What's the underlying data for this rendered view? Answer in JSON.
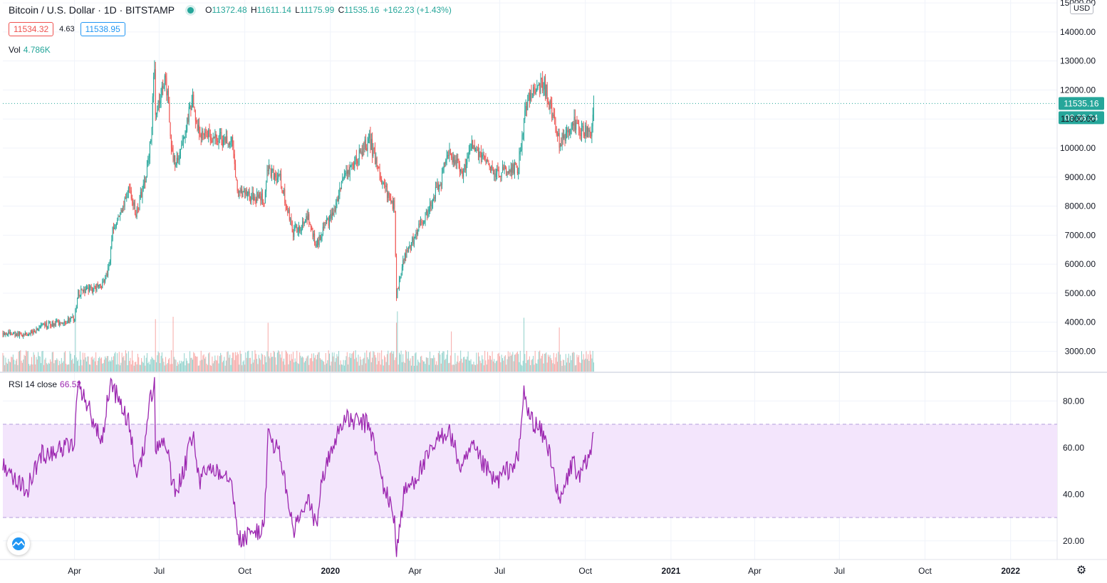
{
  "header": {
    "symbol_title": "Bitcoin / U.S. Dollar · 1D · BITSTAMP",
    "ohlc": [
      {
        "key": "O",
        "value": "11372.48"
      },
      {
        "key": "H",
        "value": "11611.14"
      },
      {
        "key": "L",
        "value": "11175.99"
      },
      {
        "key": "C",
        "value": "11535.16"
      }
    ],
    "change": "+162.23 (+1.43%)",
    "bid": "11534.32",
    "spread": "4.63",
    "ask": "11538.95",
    "volume_label": "Vol",
    "volume_value": "4.786K"
  },
  "rsi": {
    "label": "RSI 14 close",
    "value": "66.52"
  },
  "price_axis": {
    "currency": "USD",
    "last_price_label": "11535.16",
    "countdown_label": "06:36:34"
  },
  "colors": {
    "up": "#26a69a",
    "down": "#ef5350",
    "rsi_line": "#9c27b0",
    "rsi_band": "#f3e5fc",
    "grid": "#f0f3fa",
    "bid": "#ef5350",
    "ask": "#2196f3"
  },
  "icons": {
    "logo": "tradingview-logo-icon",
    "settings": "gear-icon"
  },
  "chart_data": [
    {
      "type": "candlestick",
      "title": "Bitcoin / U.S. Dollar · 1D · BITSTAMP",
      "y_ticks": [
        3000,
        4000,
        5000,
        6000,
        7000,
        8000,
        9000,
        10000,
        11000,
        12000,
        13000,
        14000,
        15000
      ],
      "y_tick_labels": [
        "3000.00",
        "4000.00",
        "5000.00",
        "6000.00",
        "7000.00",
        "8000.00",
        "9000.00",
        "10000.00",
        "11000.00",
        "12000.00",
        "13000.00",
        "14000.00",
        "15000.00"
      ],
      "x_tick_labels": [
        "Apr",
        "Jul",
        "Oct",
        "2020",
        "Apr",
        "Jul",
        "Oct",
        "2021",
        "Apr",
        "Jul",
        "Oct",
        "2022"
      ],
      "x_tick_dates": [
        "2019-04-01",
        "2019-07-01",
        "2019-10-01",
        "2020-01-01",
        "2020-04-01",
        "2020-07-01",
        "2020-10-01",
        "2021-01-01",
        "2021-04-01",
        "2021-07-01",
        "2021-10-01",
        "2022-01-01"
      ],
      "x_range": [
        "2019-01-14",
        "2022-02-20"
      ],
      "ylim": [
        2300,
        15100
      ],
      "last_close": 11535.16,
      "series_anchors": {
        "dates": [
          "2019-01-14",
          "2019-02-08",
          "2019-02-24",
          "2019-03-20",
          "2019-04-01",
          "2019-04-05",
          "2019-04-30",
          "2019-05-08",
          "2019-05-12",
          "2019-05-30",
          "2019-06-06",
          "2019-06-15",
          "2019-06-22",
          "2019-06-26",
          "2019-06-27",
          "2019-07-08",
          "2019-07-16",
          "2019-07-24",
          "2019-08-06",
          "2019-08-14",
          "2019-08-23",
          "2019-09-17",
          "2019-09-24",
          "2019-10-22",
          "2019-10-26",
          "2019-11-08",
          "2019-11-22",
          "2019-12-08",
          "2019-12-17",
          "2019-12-24",
          "2020-01-06",
          "2020-01-14",
          "2020-02-12",
          "2020-02-26",
          "2020-03-10",
          "2020-03-12",
          "2020-03-20",
          "2020-04-06",
          "2020-04-29",
          "2020-05-07",
          "2020-05-21",
          "2020-06-01",
          "2020-06-26",
          "2020-07-21",
          "2020-07-27",
          "2020-08-01",
          "2020-08-17",
          "2020-08-26",
          "2020-09-03",
          "2020-09-05",
          "2020-09-18",
          "2020-09-24",
          "2020-10-07",
          "2020-10-10"
        ],
        "closes": [
          3650,
          3550,
          3850,
          4020,
          4120,
          5000,
          5250,
          5900,
          7100,
          8600,
          7750,
          8750,
          10300,
          12800,
          11300,
          12500,
          9450,
          9900,
          11700,
          10300,
          10400,
          10200,
          8450,
          8250,
          9300,
          8900,
          7100,
          7550,
          6650,
          7250,
          7800,
          8800,
          10300,
          8750,
          7950,
          4900,
          6200,
          7300,
          8900,
          9950,
          9100,
          10150,
          9150,
          9350,
          10950,
          11800,
          12250,
          11300,
          10200,
          10250,
          10950,
          10500,
          10650,
          11535
        ]
      },
      "volume_spike_dates": [
        "2019-04-02",
        "2019-06-27",
        "2019-07-16",
        "2019-10-26",
        "2020-03-12",
        "2020-03-13",
        "2020-05-10",
        "2020-07-27",
        "2020-09-03"
      ]
    },
    {
      "type": "line",
      "title": "RSI 14 close",
      "y_ticks": [
        20,
        40,
        60,
        80
      ],
      "y_tick_labels": [
        "20.00",
        "40.00",
        "60.00",
        "80.00"
      ],
      "band": [
        30,
        70
      ],
      "ylim": [
        12,
        92
      ],
      "last_value": 66.52,
      "series_anchors": {
        "dates": [
          "2019-01-14",
          "2019-02-08",
          "2019-02-24",
          "2019-03-20",
          "2019-04-01",
          "2019-04-05",
          "2019-04-30",
          "2019-05-08",
          "2019-05-12",
          "2019-05-30",
          "2019-06-06",
          "2019-06-15",
          "2019-06-22",
          "2019-06-26",
          "2019-06-27",
          "2019-07-08",
          "2019-07-16",
          "2019-07-24",
          "2019-08-06",
          "2019-08-14",
          "2019-08-23",
          "2019-09-17",
          "2019-09-24",
          "2019-10-22",
          "2019-10-26",
          "2019-11-08",
          "2019-11-22",
          "2019-12-08",
          "2019-12-17",
          "2019-12-24",
          "2020-01-06",
          "2020-01-14",
          "2020-02-12",
          "2020-02-26",
          "2020-03-10",
          "2020-03-12",
          "2020-03-20",
          "2020-04-06",
          "2020-04-29",
          "2020-05-07",
          "2020-05-21",
          "2020-06-01",
          "2020-06-26",
          "2020-07-21",
          "2020-07-27",
          "2020-08-01",
          "2020-08-17",
          "2020-08-26",
          "2020-09-03",
          "2020-09-05",
          "2020-09-18",
          "2020-09-24",
          "2020-10-07",
          "2020-10-10"
        ],
        "values": [
          54,
          41,
          57,
          60,
          62,
          89,
          62,
          85,
          86,
          70,
          48,
          60,
          82,
          87,
          60,
          63,
          42,
          45,
          65,
          45,
          52,
          48,
          20,
          26,
          66,
          57,
          24,
          37,
          27,
          48,
          63,
          72,
          70,
          45,
          30,
          15,
          40,
          50,
          65,
          68,
          50,
          60,
          45,
          55,
          84,
          74,
          65,
          55,
          35,
          38,
          55,
          46,
          58,
          66.52
        ]
      }
    }
  ]
}
